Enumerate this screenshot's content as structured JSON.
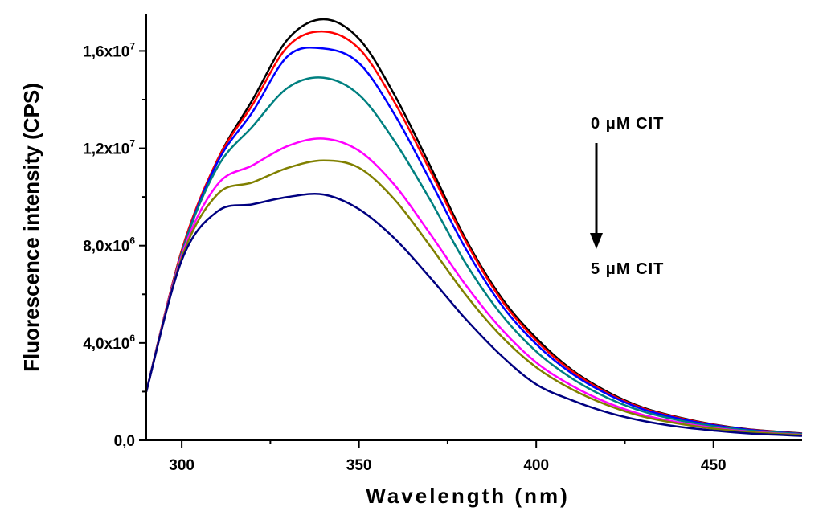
{
  "chart_data": {
    "type": "line",
    "xlabel": "Wavelength (nm)",
    "ylabel": "Fluorescence intensity (CPS)",
    "xlim": [
      290,
      475
    ],
    "ylim": [
      0,
      17500000
    ],
    "x_ticks": [
      {
        "value": 300,
        "label": "300"
      },
      {
        "value": 350,
        "label": "350"
      },
      {
        "value": 400,
        "label": "400"
      },
      {
        "value": 450,
        "label": "450"
      }
    ],
    "y_ticks": [
      {
        "value": 0,
        "label": "0,0",
        "exp": ""
      },
      {
        "value": 4000000,
        "label": "4,0x10",
        "exp": "6"
      },
      {
        "value": 8000000,
        "label": "8,0x10",
        "exp": "6"
      },
      {
        "value": 12000000,
        "label": "1,2x10",
        "exp": "7"
      },
      {
        "value": 16000000,
        "label": "1,6x10",
        "exp": "7"
      }
    ],
    "annotations": {
      "top": "0 μM CIT",
      "bottom": "5 μM CIT",
      "arrow": "down"
    },
    "x": [
      290,
      300,
      310,
      320,
      330,
      340,
      350,
      360,
      370,
      380,
      390,
      400,
      410,
      420,
      430,
      440,
      450,
      460,
      475
    ],
    "series": [
      {
        "color": "#000000",
        "values": [
          2000000,
          7800000,
          11500000,
          14000000,
          16500000,
          17300000,
          16500000,
          14200000,
          11300000,
          8300000,
          5900000,
          4200000,
          2900000,
          2000000,
          1350000,
          950000,
          650000,
          450000,
          280000
        ]
      },
      {
        "color": "#ff0000",
        "values": [
          2000000,
          7800000,
          11500000,
          13800000,
          16200000,
          16800000,
          16100000,
          13900000,
          11100000,
          8200000,
          5800000,
          4100000,
          2850000,
          1950000,
          1320000,
          930000,
          640000,
          440000,
          270000
        ]
      },
      {
        "color": "#0000ff",
        "values": [
          2000000,
          7700000,
          11400000,
          13500000,
          15800000,
          16100000,
          15500000,
          13400000,
          10700000,
          7900000,
          5600000,
          3950000,
          2750000,
          1900000,
          1280000,
          900000,
          620000,
          430000,
          260000
        ]
      },
      {
        "color": "#008080",
        "values": [
          2000000,
          7700000,
          11200000,
          12900000,
          14500000,
          14900000,
          14200000,
          12300000,
          9900000,
          7300000,
          5200000,
          3650000,
          2550000,
          1750000,
          1190000,
          830000,
          580000,
          400000,
          250000
        ]
      },
      {
        "color": "#ff00ff",
        "values": [
          2000000,
          7600000,
          10500000,
          11300000,
          12100000,
          12400000,
          11900000,
          10500000,
          8500000,
          6400000,
          4600000,
          3200000,
          2250000,
          1550000,
          1050000,
          740000,
          510000,
          360000,
          220000
        ]
      },
      {
        "color": "#808000",
        "values": [
          2000000,
          7500000,
          10100000,
          10600000,
          11200000,
          11500000,
          11200000,
          9900000,
          8000000,
          6000000,
          4300000,
          3000000,
          2100000,
          1450000,
          980000,
          690000,
          480000,
          340000,
          210000
        ]
      },
      {
        "color": "#000080",
        "values": [
          2000000,
          7400000,
          9400000,
          9700000,
          10000000,
          10100000,
          9500000,
          8300000,
          6700000,
          5000000,
          3500000,
          2300000,
          1650000,
          1150000,
          800000,
          560000,
          400000,
          280000,
          180000
        ]
      }
    ]
  }
}
